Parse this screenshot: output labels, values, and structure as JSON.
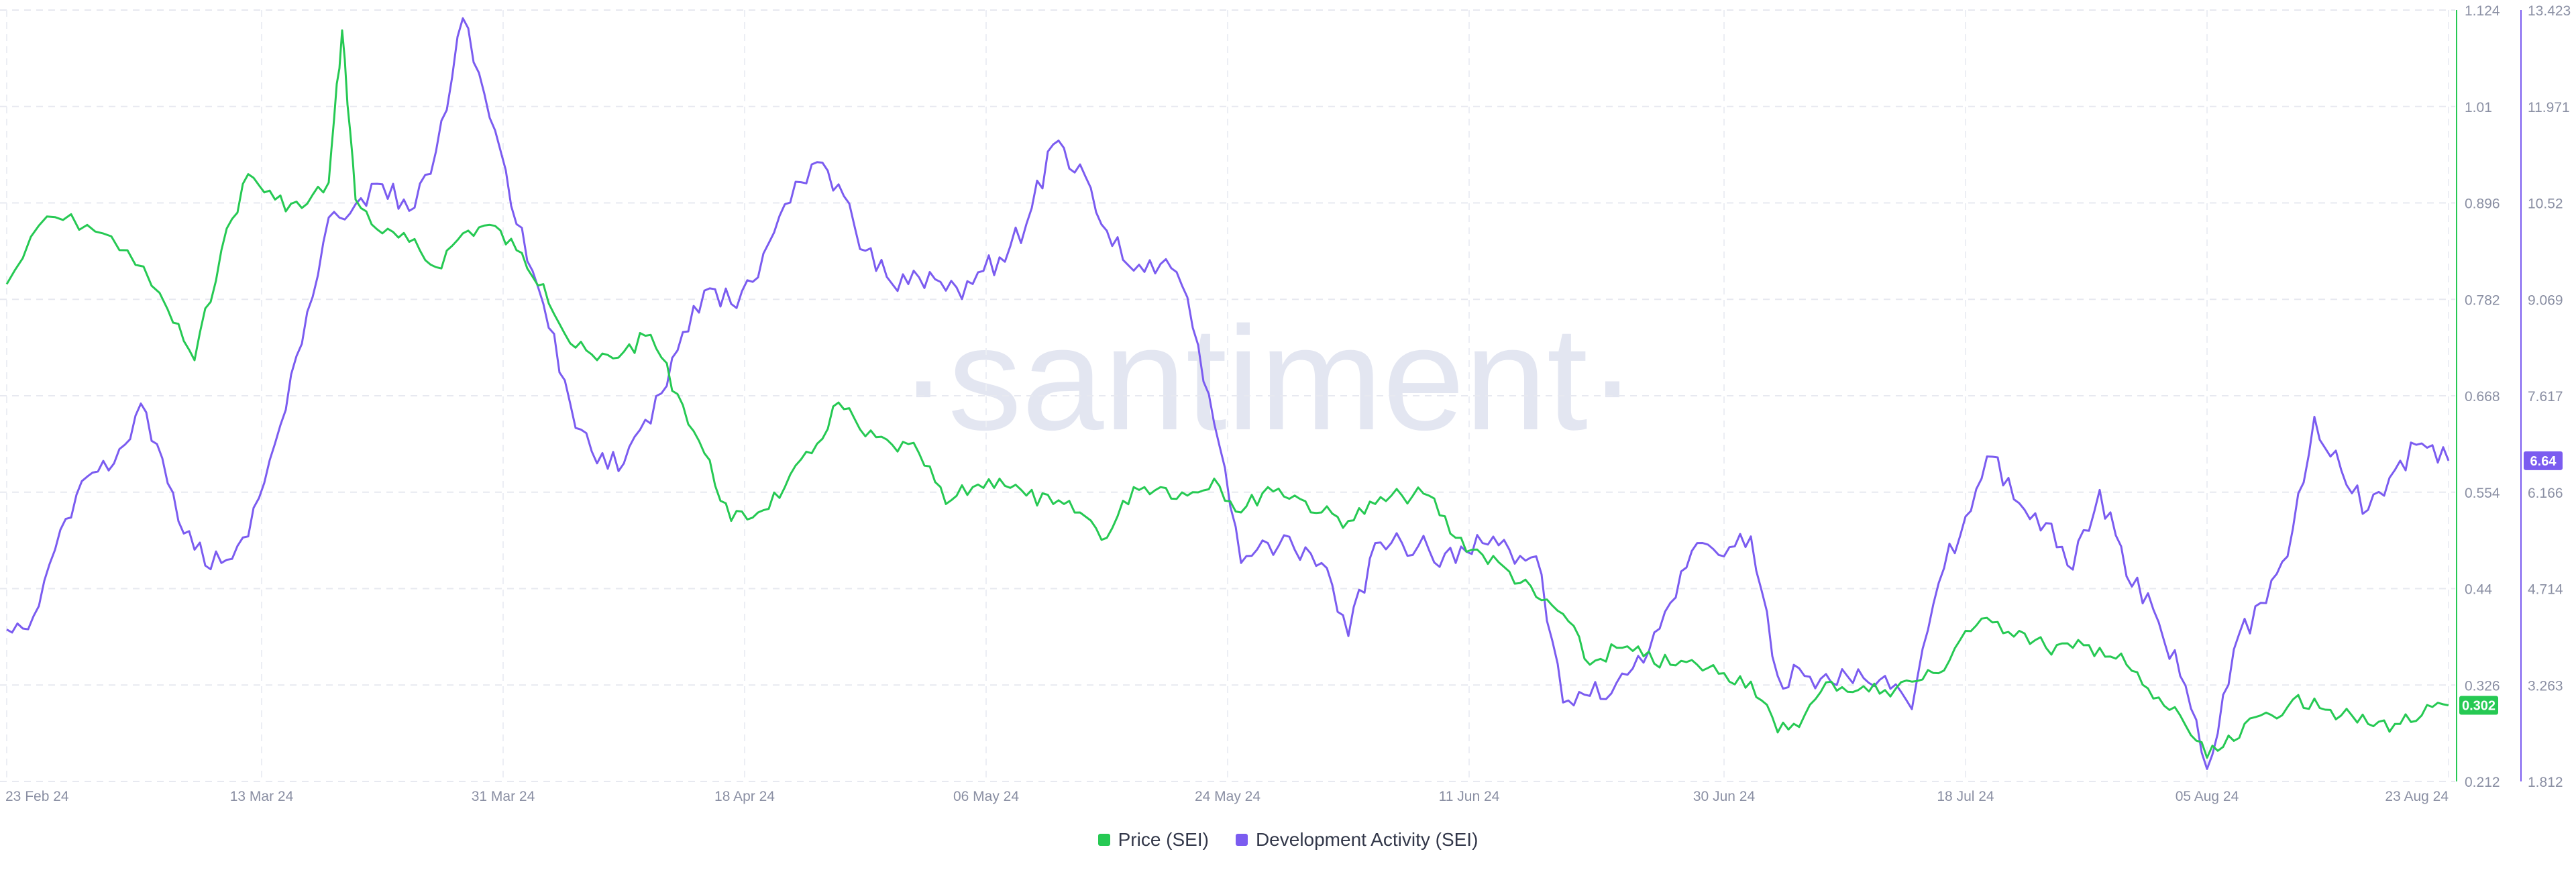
{
  "chart_data": {
    "type": "line",
    "watermark": "·santiment·",
    "x_ticks": [
      "23 Feb 24",
      "13 Mar 24",
      "31 Mar 24",
      "18 Apr 24",
      "06 May 24",
      "24 May 24",
      "11 Jun 24",
      "30 Jun 24",
      "18 Jul 24",
      "05 Aug 24",
      "23 Aug 24"
    ],
    "x_range": [
      "23 Feb 24",
      "23 Aug 24"
    ],
    "grid": true,
    "legend_position": "bottom-center",
    "series": [
      {
        "name": "Price (SEI)",
        "color": "#26c953",
        "axis": "left-right",
        "y_ticks": [
          "1.124",
          "1.01",
          "0.896",
          "0.782",
          "0.668",
          "0.554",
          "0.44",
          "0.326",
          "0.212"
        ],
        "ylim": [
          0.212,
          1.124
        ],
        "last_value_label": "0.302",
        "points": [
          [
            "23 Feb 24",
            0.8
          ],
          [
            "26 Feb 24",
            0.88
          ],
          [
            "29 Feb 24",
            0.87
          ],
          [
            "03 Mar 24",
            0.84
          ],
          [
            "06 Mar 24",
            0.77
          ],
          [
            "08 Mar 24",
            0.71
          ],
          [
            "10 Mar 24",
            0.84
          ],
          [
            "12 Mar 24",
            0.93
          ],
          [
            "14 Mar 24",
            0.9
          ],
          [
            "16 Mar 24",
            0.89
          ],
          [
            "18 Mar 24",
            0.92
          ],
          [
            "19 Mar 24",
            1.1
          ],
          [
            "20 Mar 24",
            0.9
          ],
          [
            "22 Mar 24",
            0.86
          ],
          [
            "24 Mar 24",
            0.85
          ],
          [
            "26 Mar 24",
            0.82
          ],
          [
            "28 Mar 24",
            0.86
          ],
          [
            "30 Mar 24",
            0.87
          ],
          [
            "01 Apr 24",
            0.84
          ],
          [
            "03 Apr 24",
            0.8
          ],
          [
            "05 Apr 24",
            0.73
          ],
          [
            "07 Apr 24",
            0.71
          ],
          [
            "09 Apr 24",
            0.72
          ],
          [
            "11 Apr 24",
            0.74
          ],
          [
            "13 Apr 24",
            0.67
          ],
          [
            "15 Apr 24",
            0.6
          ],
          [
            "17 Apr 24",
            0.52
          ],
          [
            "19 Apr 24",
            0.53
          ],
          [
            "21 Apr 24",
            0.56
          ],
          [
            "23 Apr 24",
            0.6
          ],
          [
            "25 Apr 24",
            0.66
          ],
          [
            "27 Apr 24",
            0.62
          ],
          [
            "29 Apr 24",
            0.61
          ],
          [
            "01 May 24",
            0.6
          ],
          [
            "03 May 24",
            0.54
          ],
          [
            "05 May 24",
            0.56
          ],
          [
            "07 May 24",
            0.57
          ],
          [
            "09 May 24",
            0.55
          ],
          [
            "11 May 24",
            0.54
          ],
          [
            "13 May 24",
            0.53
          ],
          [
            "15 May 24",
            0.5
          ],
          [
            "17 May 24",
            0.56
          ],
          [
            "19 May 24",
            0.56
          ],
          [
            "21 May 24",
            0.55
          ],
          [
            "23 May 24",
            0.57
          ],
          [
            "25 May 24",
            0.53
          ],
          [
            "27 May 24",
            0.56
          ],
          [
            "29 May 24",
            0.55
          ],
          [
            "31 May 24",
            0.53
          ],
          [
            "02 Jun 24",
            0.52
          ],
          [
            "04 Jun 24",
            0.54
          ],
          [
            "06 Jun 24",
            0.55
          ],
          [
            "08 Jun 24",
            0.55
          ],
          [
            "10 Jun 24",
            0.5
          ],
          [
            "12 Jun 24",
            0.48
          ],
          [
            "14 Jun 24",
            0.46
          ],
          [
            "16 Jun 24",
            0.43
          ],
          [
            "18 Jun 24",
            0.41
          ],
          [
            "20 Jun 24",
            0.35
          ],
          [
            "22 Jun 24",
            0.37
          ],
          [
            "24 Jun 24",
            0.36
          ],
          [
            "26 Jun 24",
            0.35
          ],
          [
            "28 Jun 24",
            0.35
          ],
          [
            "30 Jun 24",
            0.34
          ],
          [
            "02 Jul 24",
            0.33
          ],
          [
            "04 Jul 24",
            0.27
          ],
          [
            "06 Jul 24",
            0.29
          ],
          [
            "08 Jul 24",
            0.33
          ],
          [
            "10 Jul 24",
            0.32
          ],
          [
            "12 Jul 24",
            0.32
          ],
          [
            "14 Jul 24",
            0.33
          ],
          [
            "16 Jul 24",
            0.34
          ],
          [
            "18 Jul 24",
            0.39
          ],
          [
            "20 Jul 24",
            0.4
          ],
          [
            "22 Jul 24",
            0.39
          ],
          [
            "24 Jul 24",
            0.37
          ],
          [
            "26 Jul 24",
            0.37
          ],
          [
            "28 Jul 24",
            0.37
          ],
          [
            "30 Jul 24",
            0.35
          ],
          [
            "01 Aug 24",
            0.31
          ],
          [
            "03 Aug 24",
            0.29
          ],
          [
            "05 Aug 24",
            0.24
          ],
          [
            "07 Aug 24",
            0.26
          ],
          [
            "09 Aug 24",
            0.29
          ],
          [
            "11 Aug 24",
            0.3
          ],
          [
            "13 Aug 24",
            0.31
          ],
          [
            "15 Aug 24",
            0.29
          ],
          [
            "17 Aug 24",
            0.28
          ],
          [
            "19 Aug 24",
            0.28
          ],
          [
            "21 Aug 24",
            0.29
          ],
          [
            "23 Aug 24",
            0.302
          ]
        ]
      },
      {
        "name": "Development Activity (SEI)",
        "color": "#7b5cf0",
        "axis": "right",
        "y_ticks": [
          "13.423",
          "11.971",
          "10.52",
          "9.069",
          "7.617",
          "6.166",
          "4.714",
          "3.263",
          "1.812"
        ],
        "ylim": [
          1.812,
          13.423
        ],
        "last_value_label": "6.64",
        "points": [
          [
            "23 Feb 24",
            4.1
          ],
          [
            "25 Feb 24",
            4.3
          ],
          [
            "27 Feb 24",
            5.6
          ],
          [
            "29 Feb 24",
            6.4
          ],
          [
            "02 Mar 24",
            6.6
          ],
          [
            "04 Mar 24",
            7.5
          ],
          [
            "06 Mar 24",
            6.3
          ],
          [
            "08 Mar 24",
            5.3
          ],
          [
            "10 Mar 24",
            5.1
          ],
          [
            "12 Mar 24",
            5.5
          ],
          [
            "14 Mar 24",
            6.9
          ],
          [
            "16 Mar 24",
            8.4
          ],
          [
            "18 Mar 24",
            10.3
          ],
          [
            "20 Mar 24",
            10.5
          ],
          [
            "22 Mar 24",
            10.8
          ],
          [
            "24 Mar 24",
            10.4
          ],
          [
            "26 Mar 24",
            11.3
          ],
          [
            "28 Mar 24",
            13.3
          ],
          [
            "30 Mar 24",
            11.8
          ],
          [
            "01 Apr 24",
            10.2
          ],
          [
            "03 Apr 24",
            9.0
          ],
          [
            "05 Apr 24",
            7.5
          ],
          [
            "07 Apr 24",
            6.6
          ],
          [
            "09 Apr 24",
            6.6
          ],
          [
            "11 Apr 24",
            7.2
          ],
          [
            "13 Apr 24",
            8.3
          ],
          [
            "15 Apr 24",
            9.2
          ],
          [
            "17 Apr 24",
            9.0
          ],
          [
            "19 Apr 24",
            9.4
          ],
          [
            "21 Apr 24",
            10.5
          ],
          [
            "23 Apr 24",
            11.1
          ],
          [
            "25 Apr 24",
            10.8
          ],
          [
            "27 Apr 24",
            9.8
          ],
          [
            "29 Apr 24",
            9.3
          ],
          [
            "01 May 24",
            9.4
          ],
          [
            "03 May 24",
            9.2
          ],
          [
            "05 May 24",
            9.3
          ],
          [
            "07 May 24",
            9.7
          ],
          [
            "09 May 24",
            10.2
          ],
          [
            "11 May 24",
            11.4
          ],
          [
            "13 May 24",
            11.1
          ],
          [
            "15 May 24",
            10.1
          ],
          [
            "17 May 24",
            9.5
          ],
          [
            "19 May 24",
            9.6
          ],
          [
            "21 May 24",
            9.1
          ],
          [
            "23 May 24",
            7.2
          ],
          [
            "25 May 24",
            5.1
          ],
          [
            "27 May 24",
            5.4
          ],
          [
            "29 May 24",
            5.3
          ],
          [
            "31 May 24",
            5.1
          ],
          [
            "02 Jun 24",
            4.0
          ],
          [
            "04 Jun 24",
            5.4
          ],
          [
            "06 Jun 24",
            5.4
          ],
          [
            "08 Jun 24",
            5.3
          ],
          [
            "10 Jun 24",
            5.1
          ],
          [
            "12 Jun 24",
            5.4
          ],
          [
            "14 Jun 24",
            5.3
          ],
          [
            "16 Jun 24",
            5.2
          ],
          [
            "18 Jun 24",
            3.0
          ],
          [
            "20 Jun 24",
            3.1
          ],
          [
            "22 Jun 24",
            3.3
          ],
          [
            "24 Jun 24",
            3.6
          ],
          [
            "26 Jun 24",
            4.5
          ],
          [
            "28 Jun 24",
            5.4
          ],
          [
            "30 Jun 24",
            5.2
          ],
          [
            "02 Jul 24",
            5.5
          ],
          [
            "04 Jul 24",
            3.4
          ],
          [
            "06 Jul 24",
            3.4
          ],
          [
            "08 Jul 24",
            3.3
          ],
          [
            "10 Jul 24",
            3.5
          ],
          [
            "12 Jul 24",
            3.4
          ],
          [
            "14 Jul 24",
            2.9
          ],
          [
            "16 Jul 24",
            4.8
          ],
          [
            "18 Jul 24",
            5.8
          ],
          [
            "20 Jul 24",
            6.7
          ],
          [
            "22 Jul 24",
            6.0
          ],
          [
            "24 Jul 24",
            5.7
          ],
          [
            "26 Jul 24",
            5.0
          ],
          [
            "28 Jul 24",
            6.2
          ],
          [
            "30 Jul 24",
            4.9
          ],
          [
            "01 Aug 24",
            4.4
          ],
          [
            "03 Aug 24",
            3.4
          ],
          [
            "05 Aug 24",
            2.0
          ],
          [
            "07 Aug 24",
            3.8
          ],
          [
            "09 Aug 24",
            4.5
          ],
          [
            "11 Aug 24",
            5.2
          ],
          [
            "13 Aug 24",
            7.3
          ],
          [
            "15 Aug 24",
            6.5
          ],
          [
            "17 Aug 24",
            5.9
          ],
          [
            "19 Aug 24",
            6.5
          ],
          [
            "21 Aug 24",
            6.9
          ],
          [
            "23 Aug 24",
            6.64
          ]
        ]
      }
    ]
  }
}
